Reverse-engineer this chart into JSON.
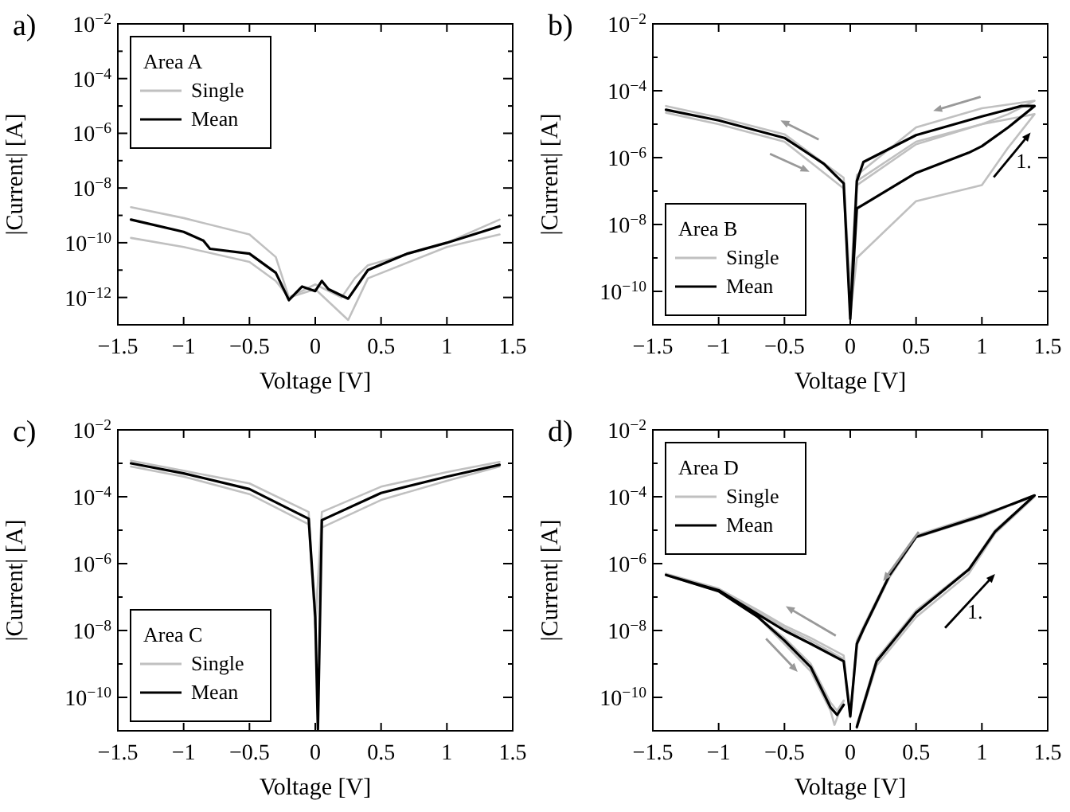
{
  "chart_data": [
    {
      "type": "line",
      "title": "a)",
      "xlabel": "Voltage [V]",
      "ylabel": "|Current| [A]",
      "legend_title": "Area A",
      "legend": "top left",
      "log": "y",
      "xlim": [
        -1.5,
        1.5
      ],
      "ylim": [
        1e-13,
        0.01
      ],
      "xticks": [
        {
          "value": -1.5,
          "label": "−1.5"
        },
        {
          "value": -1,
          "label": "−1"
        },
        {
          "value": -0.5,
          "label": "−0.5"
        },
        {
          "value": 0,
          "label": "0"
        },
        {
          "value": 0.5,
          "label": "0.5"
        },
        {
          "value": 1,
          "label": "1"
        },
        {
          "value": 1.5,
          "label": "1.5"
        }
      ],
      "yticks": [
        {
          "value": 0.01,
          "label": "10$^{−2}$"
        },
        {
          "value": 0.001,
          "label": null
        },
        {
          "value": 0.0001,
          "label": "10$^{−4}$"
        },
        {
          "value": 1e-05,
          "label": null
        },
        {
          "value": 1e-06,
          "label": "10$^{−6}$"
        },
        {
          "value": 1e-07,
          "label": null
        },
        {
          "value": 1e-08,
          "label": "10$^{−8}$"
        },
        {
          "value": 1e-09,
          "label": null
        },
        {
          "value": 1e-10,
          "label": "10$^{−10}$"
        },
        {
          "value": 1e-11,
          "label": null
        },
        {
          "value": 1e-12,
          "label": "10$^{−12}$"
        },
        {
          "value": 1e-13,
          "label": null
        }
      ],
      "series": [
        {
          "name": "Single",
          "color": "#c0c0c0",
          "x": [
            -1.4,
            -1,
            -0.5,
            -0.3,
            -0.2,
            0,
            0.2,
            0.3,
            0.4,
            1,
            1.4
          ],
          "values": [
            2e-09,
            8e-10,
            2e-10,
            3e-11,
            1e-12,
            3e-12,
            1e-12,
            5e-12,
            1.5e-11,
            1e-10,
            7e-10
          ]
        },
        {
          "color": "#c0c0c0",
          "x": [
            -1.4,
            -1,
            -0.5,
            -0.3,
            -0.2,
            0,
            0.25,
            0.4,
            1,
            1.4
          ],
          "values": [
            1.5e-10,
            7e-11,
            2e-11,
            4e-12,
            1e-12,
            2e-12,
            1.5e-13,
            5e-12,
            7e-11,
            2e-10
          ]
        },
        {
          "name": "Mean",
          "color": "#000000",
          "x": [
            -1.4,
            -1,
            -0.85,
            -0.8,
            -0.5,
            -0.3,
            -0.2,
            -0.1,
            0,
            0.05,
            0.1,
            0.25,
            0.4,
            0.7,
            1,
            1.4
          ],
          "values": [
            7e-10,
            2.5e-10,
            1.2e-10,
            6e-11,
            4e-11,
            8e-12,
            8e-13,
            2.5e-12,
            1.7e-12,
            4e-12,
            2e-12,
            9e-13,
            1e-11,
            4e-11,
            1e-10,
            4e-10
          ]
        }
      ]
    },
    {
      "type": "line",
      "title": "b)",
      "xlabel": "Voltage [V]",
      "ylabel": "|Current| [A]",
      "legend_title": "Area B",
      "legend": "bottom left",
      "log": "y",
      "annotations": [
        "1."
      ],
      "xlim": [
        -1.5,
        1.5
      ],
      "ylim": [
        1e-11,
        0.01
      ],
      "xticks": [
        {
          "value": -1.5,
          "label": "−1.5"
        },
        {
          "value": -1,
          "label": "−1"
        },
        {
          "value": -0.5,
          "label": "−0.5"
        },
        {
          "value": 0,
          "label": "0"
        },
        {
          "value": 0.5,
          "label": "0.5"
        },
        {
          "value": 1,
          "label": "1"
        },
        {
          "value": 1.5,
          "label": "1.5"
        }
      ],
      "yticks": [
        {
          "value": 0.01,
          "label": "10$^{−2}$"
        },
        {
          "value": 0.001,
          "label": null
        },
        {
          "value": 0.0001,
          "label": "10$^{−4}$"
        },
        {
          "value": 1e-05,
          "label": null
        },
        {
          "value": 1e-06,
          "label": "10$^{−6}$"
        },
        {
          "value": 1e-07,
          "label": null
        },
        {
          "value": 1e-08,
          "label": "10$^{−8}$"
        },
        {
          "value": 1e-09,
          "label": null
        },
        {
          "value": 1e-10,
          "label": "10$^{−10}$"
        },
        {
          "value": 1e-11,
          "label": null
        }
      ],
      "series": [
        {
          "name": "Single",
          "color": "#c0c0c0",
          "x": [
            0,
            0.05,
            0.5,
            1.0,
            1.2,
            1.4,
            1.0,
            0.5,
            0.05,
            0,
            -0.05,
            -0.5,
            -1,
            -1.4
          ],
          "values": [
            1e-10,
            2e-07,
            3e-06,
            1e-05,
            2e-05,
            5e-05,
            3e-05,
            8e-06,
            3e-07,
            1e-10,
            2.5e-07,
            5e-06,
            1.6e-05,
            3.5e-05
          ]
        },
        {
          "color": "#c0c0c0",
          "x": [
            0,
            0.05,
            0.5,
            1.0,
            1.2,
            1.4,
            1.0,
            0.5,
            0.05,
            0,
            -0.05,
            -0.5,
            -1,
            -1.4
          ],
          "values": [
            2e-11,
            1e-09,
            5e-08,
            1.5e-07,
            2e-06,
            2e-05,
            1e-05,
            2.5e-06,
            1.5e-07,
            2e-11,
            1.2e-07,
            3e-06,
            1e-05,
            2.2e-05
          ]
        },
        {
          "name": "Mean",
          "color": "#000000",
          "x": [
            0,
            0.05,
            0.5,
            0.9,
            1.0,
            1.2,
            1.4,
            1.3,
            1.0,
            0.5,
            0.1,
            0.05,
            0,
            -0.05,
            -0.2,
            -0.5,
            -1,
            -1.4
          ],
          "values": [
            1.5e-11,
            3e-08,
            3.5e-07,
            1.4e-06,
            2.2e-06,
            8e-06,
            3.5e-05,
            3.5e-05,
            1.7e-05,
            4.7e-06,
            7.4e-07,
            2e-07,
            1.5e-11,
            1.7e-07,
            6.5e-07,
            3.9e-06,
            1.3e-05,
            2.7e-05
          ]
        }
      ]
    },
    {
      "type": "line",
      "title": "c)",
      "xlabel": "Voltage [V]",
      "ylabel": "|Current| [A]",
      "legend_title": "Area C",
      "legend": "bottom left",
      "log": "y",
      "xlim": [
        -1.5,
        1.5
      ],
      "ylim": [
        1e-11,
        0.01
      ],
      "xticks": [
        {
          "value": -1.5,
          "label": "−1.5"
        },
        {
          "value": -1,
          "label": "−1"
        },
        {
          "value": -0.5,
          "label": "−0.5"
        },
        {
          "value": 0,
          "label": "0"
        },
        {
          "value": 0.5,
          "label": "0.5"
        },
        {
          "value": 1,
          "label": "1"
        },
        {
          "value": 1.5,
          "label": "1.5"
        }
      ],
      "yticks": [
        {
          "value": 0.01,
          "label": "10$^{−2}$"
        },
        {
          "value": 0.001,
          "label": null
        },
        {
          "value": 0.0001,
          "label": "10$^{−4}$"
        },
        {
          "value": 1e-05,
          "label": null
        },
        {
          "value": 1e-06,
          "label": "10$^{−6}$"
        },
        {
          "value": 1e-07,
          "label": null
        },
        {
          "value": 1e-08,
          "label": "10$^{−8}$"
        },
        {
          "value": 1e-09,
          "label": null
        },
        {
          "value": 1e-10,
          "label": "10$^{−10}$"
        },
        {
          "value": 1e-11,
          "label": null
        }
      ],
      "series": [
        {
          "name": "Single",
          "color": "#c0c0c0",
          "x": [
            -1.4,
            -1,
            -0.5,
            -0.05,
            0,
            0.05,
            0.5,
            1,
            1.4
          ],
          "values": [
            0.0012,
            0.0006,
            0.00025,
            3.5e-05,
            1.2e-08,
            3.5e-05,
            0.0002,
            0.00055,
            0.0011
          ]
        },
        {
          "color": "#c0c0c0",
          "x": [
            -1.4,
            -1,
            -0.5,
            -0.05,
            0,
            0.05,
            0.5,
            1,
            1.4
          ],
          "values": [
            0.0008,
            0.0004,
            0.00012,
            1.5e-05,
            1.5e-08,
            1.2e-05,
            8e-05,
            0.0003,
            0.0008
          ]
        },
        {
          "name": "Mean",
          "color": "#000000",
          "x": [
            -1.4,
            -1,
            -0.5,
            -0.05,
            0,
            0.02,
            0.05,
            0.5,
            1,
            1.4
          ],
          "values": [
            0.001,
            0.0005,
            0.00017,
            2.2e-05,
            2.5e-08,
            1.1e-11,
            2e-05,
            0.00013,
            0.0004,
            0.0009
          ]
        }
      ]
    },
    {
      "type": "line",
      "title": "d)",
      "xlabel": "Voltage [V]",
      "ylabel": "|Current| [A]",
      "legend_title": "Area D",
      "legend": "top left",
      "log": "y",
      "annotations": [
        "1."
      ],
      "xlim": [
        -1.5,
        1.5
      ],
      "ylim": [
        1e-11,
        0.01
      ],
      "xticks": [
        {
          "value": -1.5,
          "label": "−1.5"
        },
        {
          "value": -1,
          "label": "−1"
        },
        {
          "value": -0.5,
          "label": "−0.5"
        },
        {
          "value": 0,
          "label": "0"
        },
        {
          "value": 0.5,
          "label": "0.5"
        },
        {
          "value": 1,
          "label": "1"
        },
        {
          "value": 1.5,
          "label": "1.5"
        }
      ],
      "yticks": [
        {
          "value": 0.01,
          "label": "10$^{−2}$"
        },
        {
          "value": 0.001,
          "label": null
        },
        {
          "value": 0.0001,
          "label": "10$^{−4}$"
        },
        {
          "value": 1e-05,
          "label": null
        },
        {
          "value": 1e-06,
          "label": "10$^{−6}$"
        },
        {
          "value": 1e-07,
          "label": null
        },
        {
          "value": 1e-08,
          "label": "10$^{−8}$"
        },
        {
          "value": 1e-09,
          "label": null
        },
        {
          "value": 1e-10,
          "label": "10$^{−10}$"
        },
        {
          "value": 1e-11,
          "label": null
        }
      ],
      "series": [
        {
          "name": "Single",
          "color": "#c0c0c0",
          "x": [
            0.05,
            0.2,
            0.5,
            0.9,
            1.1,
            1.4,
            1.0,
            0.5,
            0.3,
            0.1,
            0.05,
            0,
            -0.05,
            -0.3,
            -0.5,
            -0.7,
            -1,
            -1.4,
            -1,
            -0.7,
            -0.5,
            -0.3,
            -0.15,
            -0.12,
            -0.05
          ],
          "values": [
            1.2e-11,
            9e-10,
            2.5e-08,
            5e-07,
            8e-06,
            0.0001,
            3e-05,
            7e-06,
            5e-07,
            1.3e-08,
            5e-09,
            3e-11,
            1.8e-09,
            6e-09,
            1.4e-08,
            4e-08,
            1.8e-07,
            5e-07,
            1.6e-07,
            2.5e-08,
            4e-09,
            6e-10,
            4e-11,
            1.5e-11,
            8e-11
          ]
        },
        {
          "color": "#c0c0c0",
          "x": [
            0.05,
            0.2,
            0.5,
            0.9,
            1.1,
            1.4,
            1.0,
            0.5,
            0.3,
            0.1,
            0.05,
            0,
            -0.05,
            -0.3,
            -0.5,
            -0.7,
            -1,
            -1.4,
            -1,
            -0.7,
            -0.5,
            -0.3,
            -0.15,
            -0.1,
            -0.05
          ],
          "values": [
            1.5e-11,
            1.4e-09,
            4e-08,
            7e-07,
            1e-05,
            0.00011,
            2.5e-05,
            6e-06,
            4e-07,
            1e-08,
            3.5e-09,
            2.5e-11,
            1.4e-09,
            5e-09,
            1.2e-08,
            3.5e-08,
            1.6e-07,
            4.5e-07,
            1.5e-07,
            2.5e-08,
            6e-09,
            1e-09,
            7e-11,
            4e-11,
            8e-11
          ]
        },
        {
          "name": "Mean",
          "color": "#000000",
          "x": [
            0.05,
            0.2,
            0.5,
            0.9,
            1.1,
            1.4,
            1.0,
            0.5,
            0.3,
            0.1,
            0.05,
            0,
            -0.05,
            -0.3,
            -0.5,
            -0.7,
            -1,
            -1.4,
            -1,
            -0.7,
            -0.5,
            -0.3,
            -0.15,
            -0.1,
            -0.05
          ],
          "values": [
            1.3e-11,
            1.2e-09,
            3.4e-08,
            6.6e-07,
            9e-06,
            0.00011,
            2.7e-05,
            6.3e-06,
            4.6e-07,
            1.1e-08,
            4e-09,
            2.7e-11,
            1.2e-09,
            4e-09,
            1e-08,
            3e-08,
            1.6e-07,
            4.6e-07,
            1.5e-07,
            2.5e-08,
            5e-09,
            8e-10,
            5e-11,
            3e-11,
            6e-11
          ]
        }
      ]
    }
  ]
}
